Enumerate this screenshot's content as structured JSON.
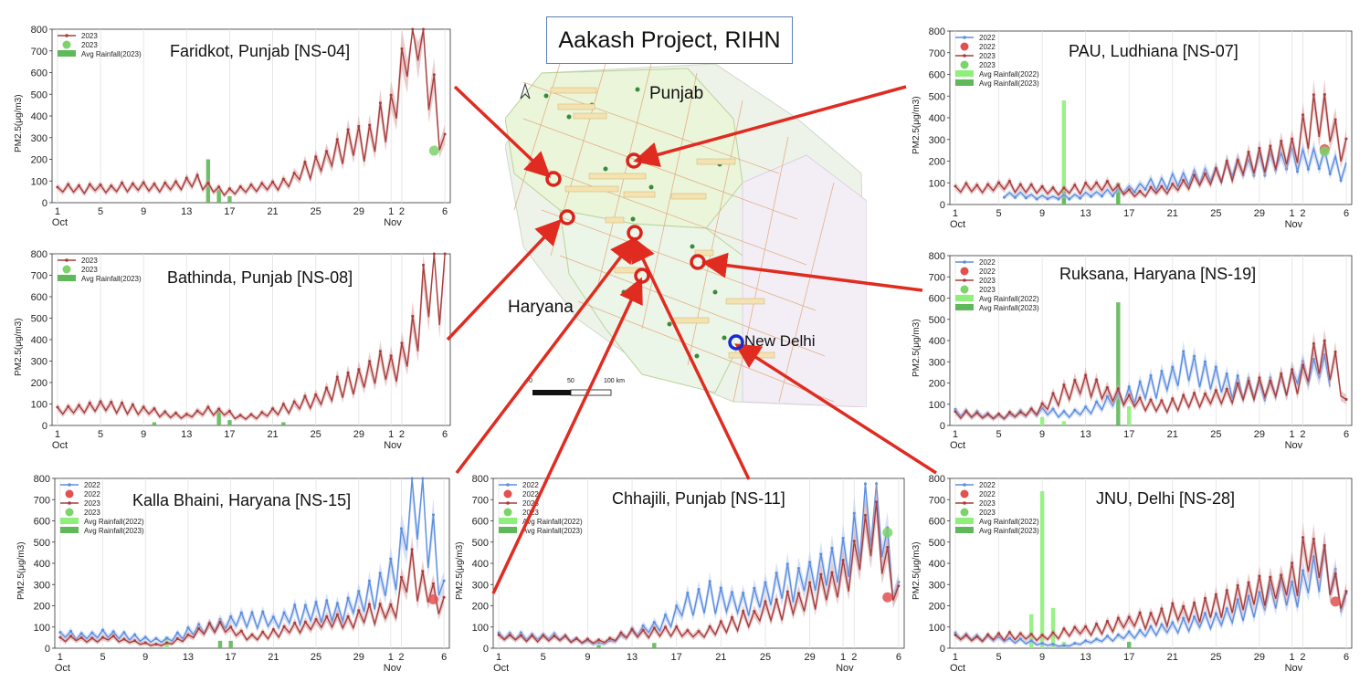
{
  "project_title": "Aakash Project, RIHN",
  "map": {
    "labels": [
      {
        "text": "Punjab",
        "x": 711,
        "y": 92,
        "size": 19
      },
      {
        "text": "Haryana",
        "x": 556,
        "y": 326,
        "size": 19
      },
      {
        "text": "New Delhi",
        "x": 815,
        "y": 364,
        "size": 17
      }
    ],
    "scale_label": "100 km",
    "scale_ticks": [
      "0",
      "50",
      "100 km"
    ]
  },
  "colors": {
    "series_2022": "#5b8ee0",
    "series_2023": "#a83c3c",
    "band_2023": "#d7a0a0",
    "band_2022": "#b6c9ee",
    "rain_2022": "#8ef07a",
    "rain_2023": "#5fb85a",
    "arrow": "#e02b20",
    "circle_2023": "#7bd36a",
    "circle_2022": "#e35050"
  },
  "chart_data": [
    {
      "id": "ns04",
      "type": "line",
      "title": "Faridkot, Punjab [NS-04]",
      "ylabel": "PM2.5(μg/m3)",
      "ylim": [
        0,
        800
      ],
      "yticks": [
        0,
        100,
        200,
        300,
        400,
        500,
        600,
        700,
        800
      ],
      "xticks": [
        "1",
        "5",
        "9",
        "13",
        "17",
        "21",
        "25",
        "29",
        "1",
        "2",
        "6"
      ],
      "xsub": [
        "Oct",
        "Nov"
      ],
      "legend": [
        "2023",
        "2023",
        "Avg Rainfall(2023)"
      ],
      "series": [
        {
          "name": "2023",
          "year": 2023,
          "base": [
            60,
            65,
            60,
            70,
            65,
            70,
            75,
            70,
            65,
            80,
            90,
            100,
            60,
            50,
            60,
            70,
            70,
            80,
            100,
            140,
            160,
            200,
            250,
            300,
            260,
            350,
            400,
            700,
            800,
            500,
            250
          ]
        }
      ],
      "rain": [
        {
          "year": 2023,
          "day": 15,
          "value": 200
        },
        {
          "year": 2023,
          "day": 16,
          "value": 60
        },
        {
          "year": 2023,
          "day": 17,
          "value": 30
        }
      ],
      "marker": {
        "year": 2023,
        "day": 36,
        "value": 240
      }
    },
    {
      "id": "ns08",
      "type": "line",
      "title": "Bathinda, Punjab [NS-08]",
      "ylabel": "PM2.5(μg/m3)",
      "ylim": [
        0,
        800
      ],
      "yticks": [
        0,
        100,
        200,
        300,
        400,
        500,
        600,
        700,
        800
      ],
      "xticks": [
        "1",
        "5",
        "9",
        "13",
        "17",
        "21",
        "25",
        "29",
        "1",
        "2",
        "6"
      ],
      "xsub": [
        "Oct",
        "Nov"
      ],
      "legend": [
        "2023",
        "2023",
        "Avg Rainfall(2023)"
      ],
      "series": [
        {
          "name": "2023",
          "year": 2023,
          "base": [
            70,
            75,
            80,
            85,
            90,
            80,
            75,
            70,
            55,
            45,
            40,
            60,
            70,
            60,
            40,
            40,
            50,
            70,
            80,
            100,
            120,
            150,
            180,
            200,
            220,
            260,
            280,
            350,
            500,
            700,
            650
          ]
        }
      ],
      "rain": [
        {
          "year": 2023,
          "day": 10,
          "value": 15
        },
        {
          "year": 2023,
          "day": 16,
          "value": 70
        },
        {
          "year": 2023,
          "day": 17,
          "value": 25
        },
        {
          "year": 2023,
          "day": 22,
          "value": 15
        }
      ],
      "marker": null
    },
    {
      "id": "ns15",
      "type": "line",
      "title": "Kalla Bhaini, Haryana [NS-15]",
      "ylabel": "PM2.5(μg/m3)",
      "ylim": [
        0,
        800
      ],
      "yticks": [
        0,
        100,
        200,
        300,
        400,
        500,
        600,
        700,
        800
      ],
      "xticks": [
        "1",
        "5",
        "9",
        "13",
        "17",
        "21",
        "25",
        "29",
        "1",
        "2",
        "6"
      ],
      "xsub": [
        "Oct",
        "Nov"
      ],
      "legend": [
        "2022",
        "2022",
        "2023",
        "2023",
        "Avg Rainfall(2022)",
        "Avg Rainfall(2023)"
      ],
      "series": [
        {
          "name": "2022",
          "year": 2022,
          "base": [
            60,
            65,
            55,
            60,
            70,
            60,
            50,
            40,
            35,
            40,
            60,
            80,
            90,
            110,
            120,
            130,
            140,
            130,
            120,
            150,
            160,
            170,
            180,
            170,
            190,
            220,
            260,
            300,
            350,
            600,
            700,
            500,
            250
          ]
        },
        {
          "name": "2023",
          "year": 2023,
          "base": [
            40,
            45,
            40,
            35,
            50,
            40,
            30,
            20,
            15,
            20,
            40,
            60,
            80,
            100,
            90,
            70,
            50,
            60,
            70,
            90,
            100,
            110,
            120,
            130,
            120,
            140,
            160,
            170,
            180,
            400,
            300,
            250,
            200
          ]
        }
      ],
      "rain": [
        {
          "year": 2022,
          "day": 11,
          "value": 55
        },
        {
          "year": 2023,
          "day": 16,
          "value": 35
        },
        {
          "year": 2023,
          "day": 17,
          "value": 35
        }
      ],
      "marker": {
        "year": 2022,
        "day": 36,
        "value": 230
      }
    },
    {
      "id": "ns11",
      "type": "line",
      "title": "Chhajili, Punjab [NS-11]",
      "ylabel": "PM2.5(μg/m3)",
      "ylim": [
        0,
        800
      ],
      "yticks": [
        0,
        100,
        200,
        300,
        400,
        500,
        600,
        700,
        800
      ],
      "xticks": [
        "1",
        "5",
        "9",
        "13",
        "17",
        "21",
        "25",
        "29",
        "1",
        "2",
        "6"
      ],
      "xsub": [
        "Oct",
        "Nov"
      ],
      "legend": [
        "2022",
        "2022",
        "2023",
        "2023",
        "Avg Rainfall(2022)",
        "Avg Rainfall(2023)"
      ],
      "series": [
        {
          "name": "2022",
          "year": 2022,
          "base": [
            60,
            60,
            55,
            50,
            55,
            50,
            40,
            30,
            20,
            30,
            60,
            80,
            90,
            120,
            160,
            200,
            220,
            240,
            230,
            200,
            220,
            250,
            270,
            300,
            320,
            340,
            360,
            400,
            450,
            600,
            700,
            450,
            250
          ]
        },
        {
          "name": "2023",
          "year": 2023,
          "base": [
            50,
            50,
            45,
            45,
            50,
            45,
            40,
            35,
            30,
            40,
            60,
            70,
            70,
            80,
            80,
            70,
            60,
            80,
            100,
            120,
            140,
            160,
            180,
            200,
            220,
            250,
            270,
            300,
            350,
            500,
            550,
            400,
            250
          ]
        }
      ],
      "rain": [
        {
          "year": 2023,
          "day": 10,
          "value": 15
        },
        {
          "year": 2023,
          "day": 15,
          "value": 25
        }
      ],
      "marker": {
        "year": 2022,
        "day": 36,
        "value": 240
      },
      "marker2": {
        "year": 2023,
        "day": 36,
        "value": 545
      }
    },
    {
      "id": "ns07",
      "type": "line",
      "title": "PAU, Ludhiana [NS-07]",
      "ylabel": "PM2.5(μg/m3)",
      "ylim": [
        0,
        800
      ],
      "yticks": [
        0,
        100,
        200,
        300,
        400,
        500,
        600,
        700,
        800
      ],
      "xticks": [
        "1",
        "5",
        "9",
        "13",
        "17",
        "21",
        "25",
        "29",
        "1",
        "2",
        "6"
      ],
      "xsub": [
        "Oct",
        "Nov"
      ],
      "legend": [
        "2022",
        "2022",
        "2023",
        "2023",
        "Avg Rainfall(2022)",
        "Avg Rainfall(2023)"
      ],
      "series": [
        {
          "name": "2022",
          "year": 2022,
          "base": [
            null,
            null,
            null,
            null,
            40,
            45,
            40,
            35,
            30,
            35,
            40,
            45,
            50,
            60,
            70,
            80,
            90,
            100,
            110,
            120,
            130,
            140,
            150,
            160,
            170,
            180,
            190,
            200,
            210,
            220,
            200,
            180,
            150
          ]
        },
        {
          "name": "2023",
          "year": 2023,
          "base": [
            70,
            75,
            70,
            80,
            85,
            80,
            75,
            70,
            65,
            60,
            70,
            80,
            90,
            80,
            60,
            50,
            60,
            70,
            80,
            100,
            110,
            130,
            150,
            170,
            190,
            200,
            220,
            240,
            260,
            400,
            450,
            300,
            250
          ]
        }
      ],
      "rain": [
        {
          "year": 2022,
          "day": 11,
          "value": 480
        },
        {
          "year": 2023,
          "day": 11,
          "value": 60
        },
        {
          "year": 2022,
          "day": 16,
          "value": 90
        },
        {
          "year": 2023,
          "day": 16,
          "value": 100
        }
      ],
      "marker": {
        "year": 2022,
        "day": 35,
        "value": 255
      },
      "marker2": {
        "year": 2023,
        "day": 35,
        "value": 245
      }
    },
    {
      "id": "ns19",
      "type": "line",
      "title": "Ruksana, Haryana [NS-19]",
      "ylabel": "PM2.5(μg/m3)",
      "ylim": [
        0,
        800
      ],
      "yticks": [
        0,
        100,
        200,
        300,
        400,
        500,
        600,
        700,
        800
      ],
      "xticks": [
        "1",
        "5",
        "9",
        "13",
        "17",
        "21",
        "25",
        "29",
        "1",
        "2",
        "6"
      ],
      "xsub": [
        "Oct",
        "Nov"
      ],
      "legend": [
        "2022",
        "2022",
        "2023",
        "2023",
        "Avg Rainfall(2022)",
        "Avg Rainfall(2023)"
      ],
      "series": [
        {
          "name": "2022",
          "year": 2022,
          "base": [
            60,
            55,
            50,
            45,
            40,
            50,
            60,
            70,
            60,
            50,
            60,
            80,
            100,
            120,
            140,
            160,
            180,
            200,
            240,
            280,
            260,
            220,
            200,
            180,
            170,
            160,
            180,
            200,
            240,
            260,
            280,
            250,
            null
          ]
        },
        {
          "name": "2023",
          "year": 2023,
          "base": [
            50,
            50,
            45,
            40,
            45,
            50,
            60,
            80,
            120,
            160,
            180,
            200,
            160,
            140,
            120,
            110,
            100,
            90,
            100,
            110,
            120,
            130,
            140,
            150,
            160,
            170,
            180,
            200,
            220,
            260,
            350,
            300,
            100
          ]
        }
      ],
      "rain": [
        {
          "year": 2022,
          "day": 9,
          "value": 40
        },
        {
          "year": 2022,
          "day": 11,
          "value": 20
        },
        {
          "year": 2023,
          "day": 16,
          "value": 580
        },
        {
          "year": 2022,
          "day": 17,
          "value": 90
        }
      ],
      "marker": null
    },
    {
      "id": "ns28",
      "type": "line",
      "title": "JNU, Delhi [NS-28]",
      "ylabel": "PM2.5(μg/m3)",
      "ylim": [
        0,
        800
      ],
      "yticks": [
        0,
        100,
        200,
        300,
        400,
        500,
        600,
        700,
        800
      ],
      "xticks": [
        "1",
        "5",
        "9",
        "13",
        "17",
        "21",
        "25",
        "29",
        "1",
        "2",
        "6"
      ],
      "xsub": [
        "Oct",
        "Nov"
      ],
      "legend": [
        "2022",
        "2022",
        "2023",
        "2023",
        "Avg Rainfall(2022)",
        "Avg Rainfall(2023)"
      ],
      "series": [
        {
          "name": "2022",
          "year": 2022,
          "base": [
            60,
            55,
            50,
            45,
            40,
            35,
            30,
            20,
            15,
            10,
            20,
            30,
            40,
            50,
            60,
            70,
            80,
            90,
            100,
            110,
            120,
            130,
            150,
            170,
            190,
            210,
            230,
            250,
            280,
            350,
            380,
            300,
            200
          ]
        },
        {
          "name": "2023",
          "year": 2023,
          "base": [
            50,
            50,
            45,
            50,
            55,
            60,
            55,
            50,
            60,
            70,
            80,
            90,
            100,
            110,
            120,
            130,
            140,
            150,
            160,
            170,
            180,
            190,
            200,
            220,
            240,
            260,
            280,
            300,
            350,
            450,
            400,
            300,
            220
          ]
        }
      ],
      "rain": [
        {
          "year": 2022,
          "day": 8,
          "value": 160
        },
        {
          "year": 2022,
          "day": 9,
          "value": 740
        },
        {
          "year": 2022,
          "day": 10,
          "value": 190
        },
        {
          "year": 2022,
          "day": 11,
          "value": 30
        },
        {
          "year": 2023,
          "day": 17,
          "value": 30
        }
      ],
      "marker": {
        "year": 2022,
        "day": 36,
        "value": 220
      }
    }
  ]
}
